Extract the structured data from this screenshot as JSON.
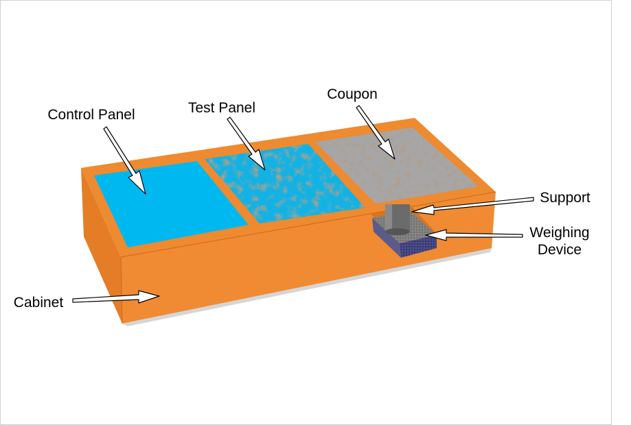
{
  "labels": {
    "control_panel": "Control Panel",
    "test_panel": "Test Panel",
    "coupon": "Coupon",
    "support": "Support",
    "weighing_device_line1": "Weighing",
    "weighing_device_line2": "Device",
    "cabinet": "Cabinet"
  },
  "colors": {
    "cabinet_top": "#EE8A30",
    "cabinet_side": "#E47D26",
    "cabinet_front": "#F08B33",
    "control_panel": "#00B8F0",
    "test_panel": "#12B2E4",
    "test_panel_stain": "#6E5A45",
    "coupon": "#A6A6A6",
    "coupon_stain": "#7A5A42",
    "support": "#6B6B6B",
    "weighing_device": "#7E7E7E",
    "weighing_device_base": "#3E3E7A"
  }
}
